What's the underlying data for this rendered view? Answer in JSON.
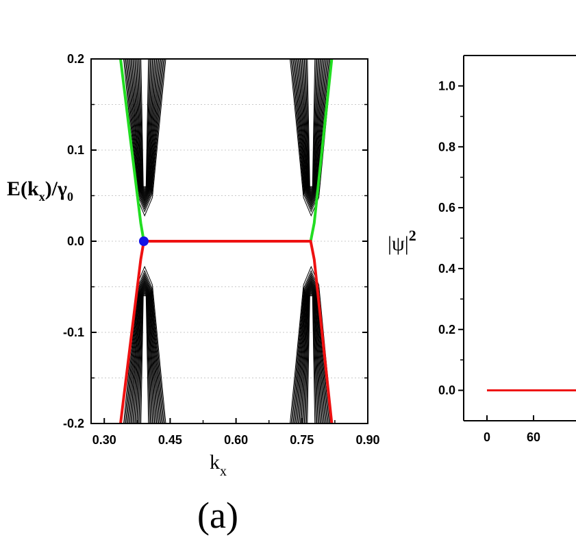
{
  "chart_data": [
    {
      "type": "line",
      "panel_label": "(a)",
      "ylabel": {
        "main": "E(k",
        "sub1": "x",
        "mid": ")/γ",
        "sub2": "0"
      },
      "xlabel": {
        "main": "k",
        "sub": "x"
      },
      "xlim": [
        0.27,
        0.9
      ],
      "ylim": [
        -0.2,
        0.2
      ],
      "xticks": [
        0.3,
        0.45,
        0.6,
        0.75,
        0.9
      ],
      "xtick_labels": [
        "0.30",
        "0.45",
        "0.60",
        "0.75",
        "0.90"
      ],
      "yticks": [
        0.2,
        0.1,
        0.0,
        -0.1,
        -0.2
      ],
      "ytick_labels": [
        "0.2",
        "0.1",
        "0.0",
        "-0.1",
        "-0.2"
      ],
      "grid": "horizontal dotted",
      "colors": {
        "edge_upper": "#22dd22",
        "edge_lower": "#ee1111",
        "bulk": "#000000",
        "marker": "#1414e6"
      },
      "series": [
        {
          "role": "edge_upper",
          "x": [
            0.337,
            0.383,
            0.39,
            0.77,
            0.778,
            0.818
          ],
          "y": [
            0.2,
            0.02,
            0.0,
            0.0,
            0.02,
            0.2
          ]
        },
        {
          "role": "edge_lower",
          "x": [
            0.337,
            0.383,
            0.39,
            0.77,
            0.778,
            0.818
          ],
          "y": [
            -0.2,
            -0.02,
            0.0,
            0.0,
            -0.02,
            -0.2
          ]
        }
      ],
      "bulk_bands": {
        "valleys": [
          {
            "center": 0.392,
            "half_width_top": 0.05,
            "gap_min": 0.028,
            "gap_max": 0.06
          },
          {
            "center": 0.771,
            "half_width_top": 0.05,
            "gap_min": 0.028,
            "gap_max": 0.06
          }
        ],
        "count_per_side": 18
      },
      "marker": {
        "x": 0.39,
        "y": 0.0
      }
    },
    {
      "type": "line",
      "ylabel": {
        "main": "|ψ|",
        "sup": "2"
      },
      "ylim": [
        -0.1,
        1.1
      ],
      "yticks": [
        1.0,
        0.8,
        0.6,
        0.4,
        0.2,
        0.0
      ],
      "ytick_labels": [
        "1.0",
        "0.8",
        "0.6",
        "0.4",
        "0.2",
        "0.0"
      ],
      "xlim": [
        -30,
        150
      ],
      "xticks": [
        0,
        60
      ],
      "xtick_labels": [
        "0",
        "60"
      ],
      "colors": {
        "line": "#ee1111"
      },
      "series": [
        {
          "x": [
            0,
            150
          ],
          "y": [
            0.0,
            0.0
          ]
        }
      ]
    }
  ]
}
